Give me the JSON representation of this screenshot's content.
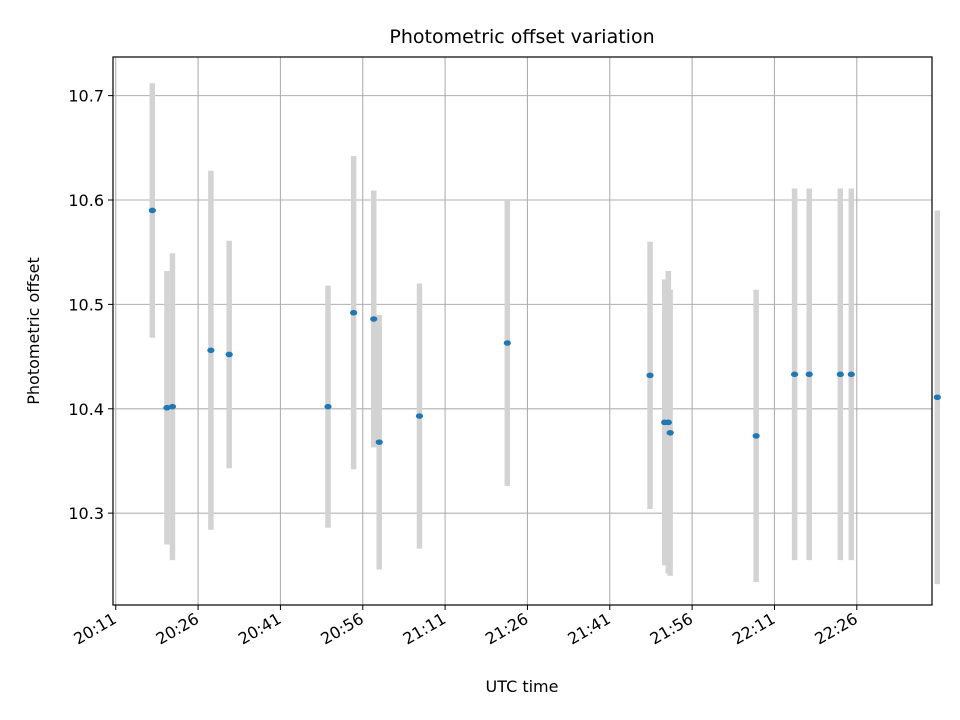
{
  "chart_data": {
    "type": "scatter",
    "title": "Photometric offset variation",
    "xlabel": "UTC time",
    "ylabel": "Photometric offset",
    "x_ticks": [
      "20:11",
      "20:26",
      "20:41",
      "20:56",
      "21:11",
      "21:26",
      "21:41",
      "21:56",
      "22:11",
      "22:26"
    ],
    "y_ticks": [
      "10.3",
      "10.4",
      "10.5",
      "10.6",
      "10.7"
    ],
    "xlim": [
      "20:10.5",
      "22:39.7"
    ],
    "ylim": [
      10.212,
      10.737
    ],
    "grid": true,
    "marker_color": "#1f77b4",
    "errorbar_color": "#d3d3d3",
    "points": [
      {
        "x": "20:17:40",
        "y": 10.59,
        "yerr": 0.122
      },
      {
        "x": "20:20:20",
        "y": 10.401,
        "yerr": 0.131
      },
      {
        "x": "20:21:20",
        "y": 10.402,
        "yerr": 0.147
      },
      {
        "x": "20:28:20",
        "y": 10.456,
        "yerr": 0.172
      },
      {
        "x": "20:31:40",
        "y": 10.452,
        "yerr": 0.109
      },
      {
        "x": "20:49:40",
        "y": 10.402,
        "yerr": 0.116
      },
      {
        "x": "20:54:20",
        "y": 10.492,
        "yerr": 0.15
      },
      {
        "x": "20:58:00",
        "y": 10.486,
        "yerr": 0.123
      },
      {
        "x": "20:59:00",
        "y": 10.368,
        "yerr": 0.122
      },
      {
        "x": "21:06:20",
        "y": 10.393,
        "yerr": 0.127
      },
      {
        "x": "21:22:20",
        "y": 10.463,
        "yerr": 0.137
      },
      {
        "x": "21:48:20",
        "y": 10.432,
        "yerr": 0.128
      },
      {
        "x": "21:51:00",
        "y": 10.387,
        "yerr": 0.137
      },
      {
        "x": "21:51:40",
        "y": 10.387,
        "yerr": 0.145
      },
      {
        "x": "21:52:00",
        "y": 10.377,
        "yerr": 0.137
      },
      {
        "x": "22:07:40",
        "y": 10.374,
        "yerr": 0.14
      },
      {
        "x": "22:14:40",
        "y": 10.433,
        "yerr": 0.178
      },
      {
        "x": "22:17:20",
        "y": 10.433,
        "yerr": 0.178
      },
      {
        "x": "22:23:00",
        "y": 10.433,
        "yerr": 0.178
      },
      {
        "x": "22:25:00",
        "y": 10.433,
        "yerr": 0.178
      },
      {
        "x": "22:40:40",
        "y": 10.411,
        "yerr": 0.179
      }
    ]
  }
}
